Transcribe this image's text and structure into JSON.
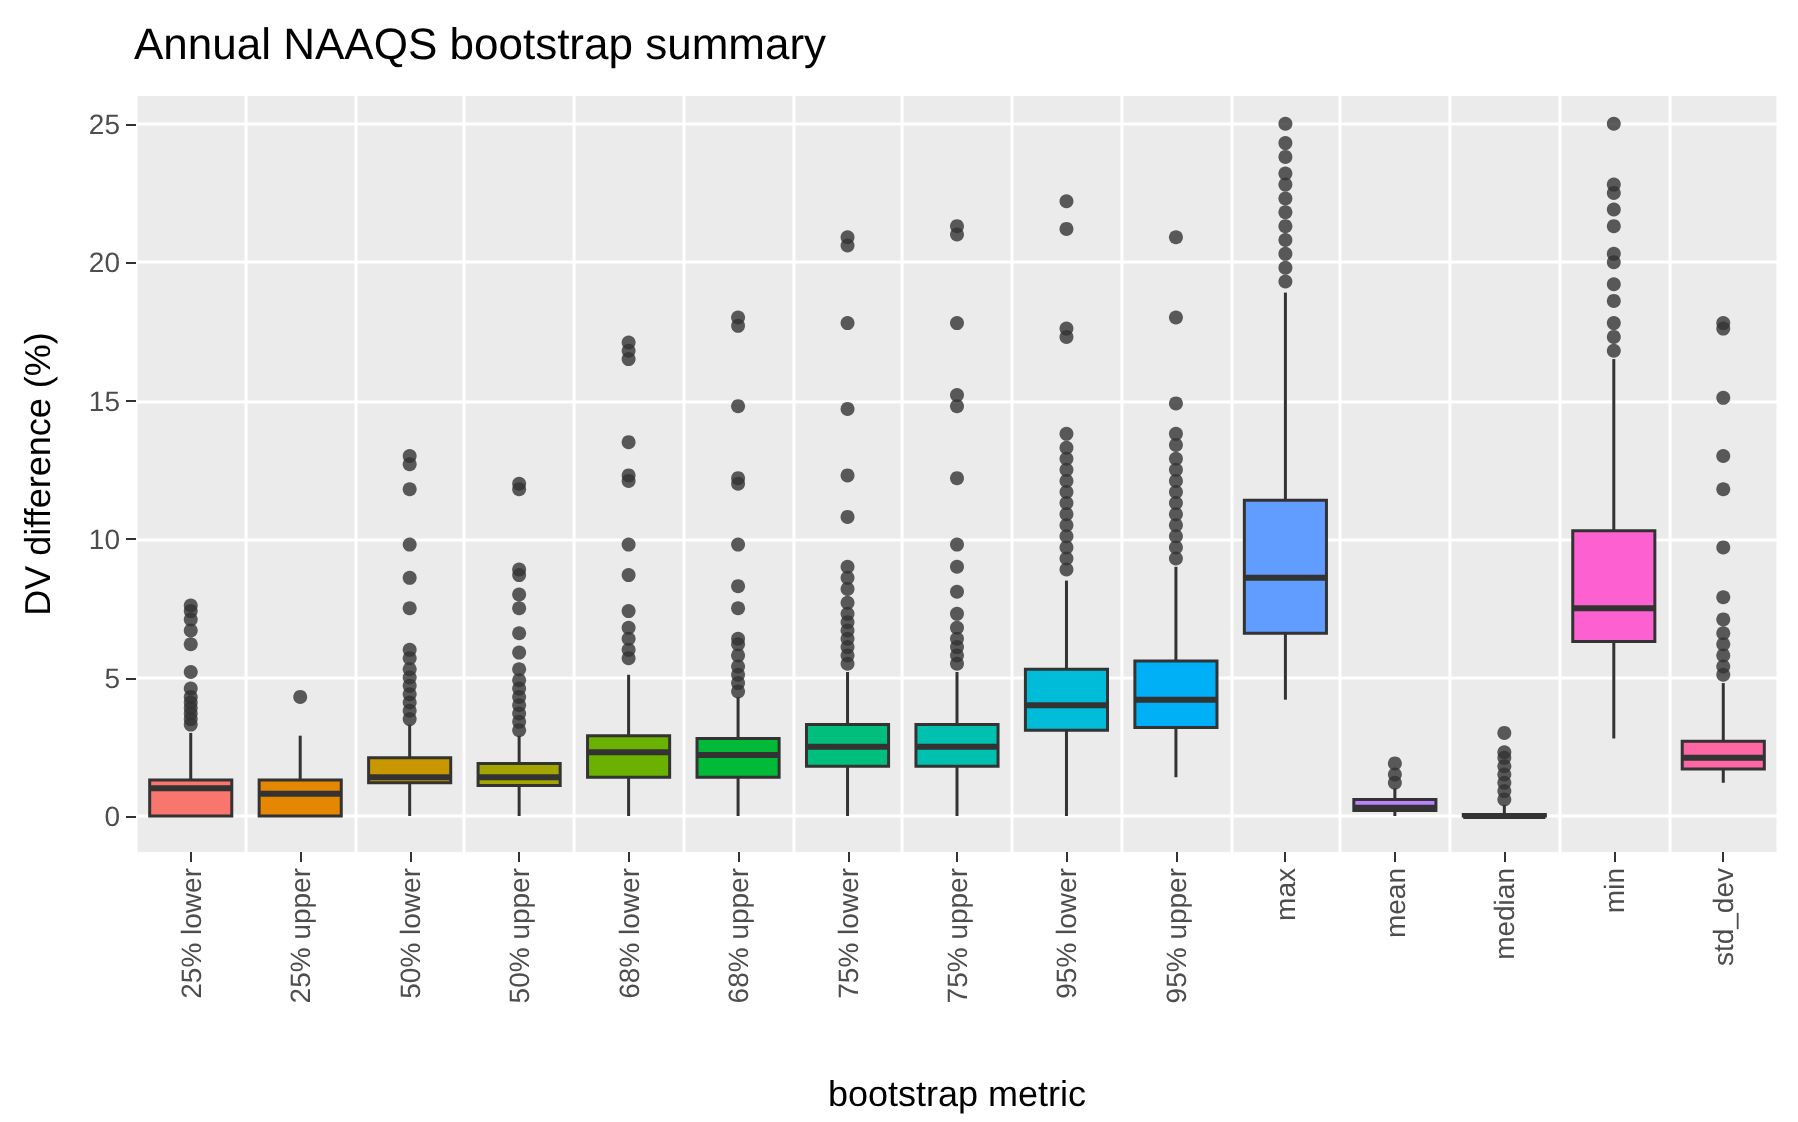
{
  "chart_data": {
    "type": "box",
    "title": "Annual NAAQS bootstrap summary",
    "xlabel": "bootstrap metric",
    "ylabel": "DV difference (%)",
    "categories": [
      "25% lower",
      "25% upper",
      "50% lower",
      "50% upper",
      "68% lower",
      "68% upper",
      "75% lower",
      "75% upper",
      "95% lower",
      "95% upper",
      "max",
      "mean",
      "median",
      "min",
      "std_dev"
    ],
    "colors": [
      "#f8766d",
      "#e58700",
      "#c99800",
      "#a3a500",
      "#6bb100",
      "#00ba38",
      "#00bf7d",
      "#00c0af",
      "#00bcd8",
      "#00b0f6",
      "#619cff",
      "#b983ff",
      "#e76bf3",
      "#fd61d1",
      "#ff67a4"
    ],
    "ylim": [
      -1.3,
      26
    ],
    "yticks": [
      0,
      5,
      10,
      15,
      20,
      25
    ],
    "grid": true,
    "boxes": [
      {
        "low": 0,
        "q1": 0,
        "median": 1,
        "q3": 1.3,
        "high": 3,
        "outliers": [
          3.3,
          3.5,
          3.7,
          3.9,
          4.1,
          4.3,
          4.6,
          5.2,
          6.2,
          6.7,
          7.1,
          7.4,
          7.6
        ]
      },
      {
        "low": 0,
        "q1": 0,
        "median": 0.8,
        "q3": 1.3,
        "high": 2.9,
        "outliers": [
          4.3
        ]
      },
      {
        "low": 0,
        "q1": 1.2,
        "median": 1.4,
        "q3": 2.1,
        "high": 3.3,
        "outliers": [
          3.5,
          3.8,
          4.1,
          4.4,
          4.7,
          5.0,
          5.3,
          5.7,
          6.0,
          7.5,
          8.6,
          9.8,
          11.8,
          12.7,
          13.0
        ]
      },
      {
        "low": 0,
        "q1": 1.1,
        "median": 1.4,
        "q3": 1.9,
        "high": 2.9,
        "outliers": [
          3.1,
          3.4,
          3.7,
          4.0,
          4.3,
          4.6,
          4.9,
          5.3,
          5.9,
          6.6,
          7.5,
          8.0,
          8.7,
          8.9,
          11.8,
          12.0
        ]
      },
      {
        "low": 0,
        "q1": 1.4,
        "median": 2.3,
        "q3": 2.9,
        "high": 5.1,
        "outliers": [
          5.7,
          6.0,
          6.4,
          6.8,
          7.4,
          8.7,
          9.8,
          12.1,
          12.3,
          13.5,
          16.5,
          16.8,
          17.1
        ]
      },
      {
        "low": 0,
        "q1": 1.4,
        "median": 2.2,
        "q3": 2.8,
        "high": 4.3,
        "outliers": [
          4.5,
          4.8,
          5.1,
          5.4,
          5.8,
          6.2,
          6.4,
          7.5,
          8.3,
          9.8,
          12.0,
          12.2,
          14.8,
          17.7,
          18.0
        ]
      },
      {
        "low": 0,
        "q1": 1.8,
        "median": 2.5,
        "q3": 3.3,
        "high": 5.2,
        "outliers": [
          5.5,
          5.8,
          6.1,
          6.4,
          6.7,
          7.0,
          7.3,
          7.7,
          8.2,
          8.6,
          9.0,
          10.8,
          12.3,
          14.7,
          17.8,
          20.6,
          20.9
        ]
      },
      {
        "low": 0,
        "q1": 1.8,
        "median": 2.5,
        "q3": 3.3,
        "high": 5.2,
        "outliers": [
          5.5,
          5.8,
          6.1,
          6.4,
          6.8,
          7.3,
          8.1,
          9.0,
          9.8,
          12.2,
          14.8,
          15.2,
          17.8,
          21.0,
          21.3
        ]
      },
      {
        "low": 0,
        "q1": 3.1,
        "median": 4.0,
        "q3": 5.3,
        "high": 8.5,
        "outliers": [
          8.9,
          9.3,
          9.7,
          10.1,
          10.5,
          10.9,
          11.3,
          11.7,
          12.1,
          12.5,
          12.9,
          13.3,
          13.8,
          17.3,
          17.6,
          21.2,
          22.2
        ]
      },
      {
        "low": 1.4,
        "q1": 3.2,
        "median": 4.2,
        "q3": 5.6,
        "high": 9.0,
        "outliers": [
          9.3,
          9.7,
          10.1,
          10.5,
          10.9,
          11.3,
          11.7,
          12.1,
          12.5,
          12.9,
          13.4,
          13.8,
          14.9,
          18.0,
          20.9
        ]
      },
      {
        "low": 4.2,
        "q1": 6.6,
        "median": 8.6,
        "q3": 11.4,
        "high": 18.9,
        "outliers": [
          19.3,
          19.8,
          20.3,
          20.8,
          21.3,
          21.8,
          22.3,
          22.8,
          23.2,
          23.8,
          24.3,
          25.0
        ]
      },
      {
        "low": 0,
        "q1": 0.2,
        "median": 0.3,
        "q3": 0.6,
        "high": 1.0,
        "outliers": [
          1.2,
          1.5,
          1.9
        ]
      },
      {
        "low": 0,
        "q1": 0,
        "median": 0,
        "q3": 0.05,
        "high": 0.4,
        "outliers": [
          0.6,
          0.9,
          1.2,
          1.5,
          1.8,
          2.1,
          2.3,
          3.0
        ]
      },
      {
        "low": 2.8,
        "q1": 6.3,
        "median": 7.5,
        "q3": 10.3,
        "high": 16.5,
        "outliers": [
          16.8,
          17.3,
          17.8,
          18.6,
          19.2,
          20.0,
          20.3,
          21.3,
          21.9,
          22.5,
          22.8,
          25.0
        ]
      },
      {
        "low": 1.2,
        "q1": 1.7,
        "median": 2.1,
        "q3": 2.7,
        "high": 4.8,
        "outliers": [
          5.1,
          5.4,
          5.8,
          6.2,
          6.6,
          7.1,
          7.9,
          9.7,
          11.8,
          13.0,
          15.1,
          17.6,
          17.8
        ]
      }
    ]
  }
}
